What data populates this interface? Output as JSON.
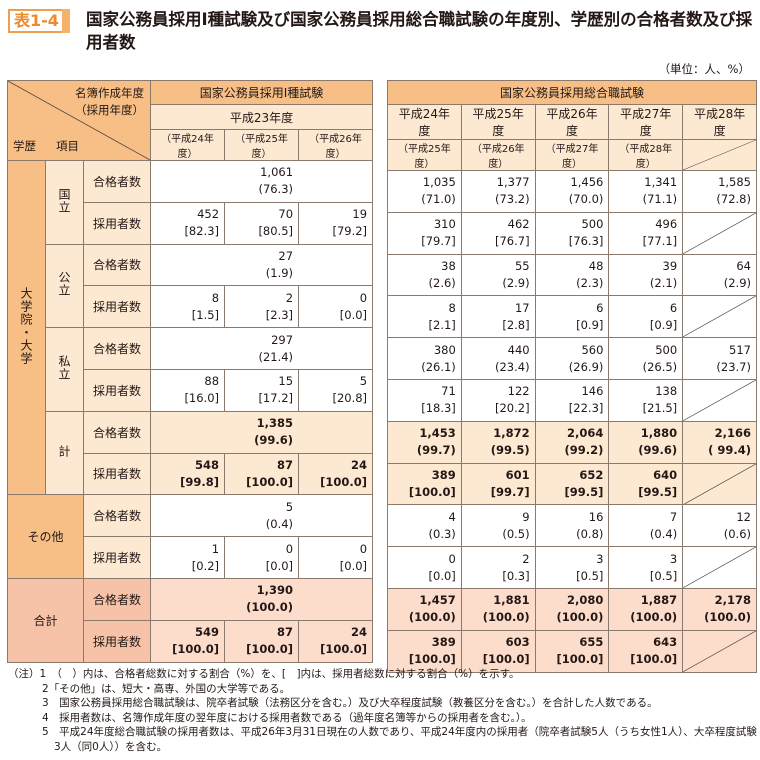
{
  "tag": "表1-4",
  "title": "国家公務員採用Ⅰ種試験及び国家公務員採用総合職試験の年度別、学歴別の合格者数及び採用者数",
  "unit": "（単位：人、%）",
  "corner": {
    "top": "名簿作成年度",
    "top2": "（採用年度）",
    "left1": "学歴",
    "left2": "項目"
  },
  "left_header": {
    "exam": "国家公務員採用Ⅰ種試験",
    "year": "平成23年度",
    "subyears": [
      "（平成24年度）",
      "（平成25年度）",
      "（平成26年度）"
    ]
  },
  "right_header": {
    "exam": "国家公務員採用総合職試験",
    "years": [
      "平成24年度",
      "平成25年度",
      "平成26年度",
      "平成27年度",
      "平成28年度"
    ],
    "subyears": [
      "（平成25年度）",
      "（平成26年度）",
      "（平成27年度）",
      "（平成28年度）"
    ]
  },
  "groups": [
    {
      "label": "大学院・大学",
      "subs": [
        "国立",
        "公立",
        "私立",
        "計"
      ]
    },
    {
      "label": "その他"
    },
    {
      "label": "合計"
    }
  ],
  "items": {
    "pass": "合格者数",
    "hire": "採用者数"
  },
  "rows": [
    {
      "tone": "",
      "left": [
        [
          "1,061",
          "(76.3)"
        ]
      ],
      "right": [
        [
          "1,035",
          "(71.0)"
        ],
        [
          "1,377",
          "(73.2)"
        ],
        [
          "1,456",
          "(70.0)"
        ],
        [
          "1,341",
          "(71.1)"
        ],
        [
          "1,585",
          "(72.8)"
        ]
      ]
    },
    {
      "tone": "",
      "left": [
        [
          "452",
          "[82.3]"
        ],
        [
          "70",
          "[80.5]"
        ],
        [
          "19",
          "[79.2]"
        ]
      ],
      "right": [
        [
          "310",
          "[79.7]"
        ],
        [
          "462",
          "[76.7]"
        ],
        [
          "500",
          "[76.3]"
        ],
        [
          "496",
          "[77.1]"
        ]
      ]
    },
    {
      "tone": "",
      "left": [
        [
          "27",
          "(1.9)"
        ]
      ],
      "right": [
        [
          "38",
          "(2.6)"
        ],
        [
          "55",
          "(2.9)"
        ],
        [
          "48",
          "(2.3)"
        ],
        [
          "39",
          "(2.1)"
        ],
        [
          "64",
          "(2.9)"
        ]
      ]
    },
    {
      "tone": "",
      "left": [
        [
          "8",
          "[1.5]"
        ],
        [
          "2",
          "[2.3]"
        ],
        [
          "0",
          "[0.0]"
        ]
      ],
      "right": [
        [
          "8",
          "[2.1]"
        ],
        [
          "17",
          "[2.8]"
        ],
        [
          "6",
          "[0.9]"
        ],
        [
          "6",
          "[0.9]"
        ]
      ]
    },
    {
      "tone": "",
      "left": [
        [
          "297",
          "(21.4)"
        ]
      ],
      "right": [
        [
          "380",
          "(26.1)"
        ],
        [
          "440",
          "(23.4)"
        ],
        [
          "560",
          "(26.9)"
        ],
        [
          "500",
          "(26.5)"
        ],
        [
          "517",
          "(23.7)"
        ]
      ]
    },
    {
      "tone": "",
      "left": [
        [
          "88",
          "[16.0]"
        ],
        [
          "15",
          "[17.2]"
        ],
        [
          "5",
          "[20.8]"
        ]
      ],
      "right": [
        [
          "71",
          "[18.3]"
        ],
        [
          "122",
          "[20.2]"
        ],
        [
          "146",
          "[22.3]"
        ],
        [
          "138",
          "[21.5]"
        ]
      ]
    },
    {
      "tone": "k",
      "left": [
        [
          "1,385",
          "(99.6)"
        ]
      ],
      "right": [
        [
          "1,453",
          "(99.7)"
        ],
        [
          "1,872",
          "(99.5)"
        ],
        [
          "2,064",
          "(99.2)"
        ],
        [
          "1,880",
          "(99.6)"
        ],
        [
          "2,166",
          "( 99.4)"
        ]
      ]
    },
    {
      "tone": "k",
      "left": [
        [
          "548",
          "[99.8]"
        ],
        [
          "87",
          "[100.0]"
        ],
        [
          "24",
          "[100.0]"
        ]
      ],
      "right": [
        [
          "389",
          "[100.0]"
        ],
        [
          "601",
          "[99.7]"
        ],
        [
          "652",
          "[99.5]"
        ],
        [
          "640",
          "[99.5]"
        ]
      ]
    },
    {
      "tone": "",
      "left": [
        [
          "5",
          "(0.4)"
        ]
      ],
      "right": [
        [
          "4",
          "(0.3)"
        ],
        [
          "9",
          "(0.5)"
        ],
        [
          "16",
          "(0.8)"
        ],
        [
          "7",
          "(0.4)"
        ],
        [
          "12",
          "(0.6)"
        ]
      ]
    },
    {
      "tone": "",
      "left": [
        [
          "1",
          "[0.2]"
        ],
        [
          "0",
          "[0.0]"
        ],
        [
          "0",
          "[0.0]"
        ]
      ],
      "right": [
        [
          "0",
          "[0.0]"
        ],
        [
          "2",
          "[0.3]"
        ],
        [
          "3",
          "[0.5]"
        ],
        [
          "3",
          "[0.5]"
        ]
      ]
    },
    {
      "tone": "t",
      "left": [
        [
          "1,390",
          "(100.0)"
        ]
      ],
      "right": [
        [
          "1,457",
          "(100.0)"
        ],
        [
          "1,881",
          "(100.0)"
        ],
        [
          "2,080",
          "(100.0)"
        ],
        [
          "1,887",
          "(100.0)"
        ],
        [
          "2,178",
          "(100.0)"
        ]
      ]
    },
    {
      "tone": "t",
      "left": [
        [
          "549",
          "[100.0]"
        ],
        [
          "87",
          "[100.0]"
        ],
        [
          "24",
          "[100.0]"
        ]
      ],
      "right": [
        [
          "389",
          "[100.0]"
        ],
        [
          "603",
          "[100.0]"
        ],
        [
          "655",
          "[100.0]"
        ],
        [
          "643",
          "[100.0]"
        ]
      ]
    }
  ],
  "notes": [
    "（注）1　（　）内は、合格者総数に対する割合（%）を、[　]内は、採用者総数に対する割合（%）を示す。",
    "2「その他」は、短大・高専、外国の大学等である。",
    "3　国家公務員採用総合職試験は、院卒者試験（法務区分を含む。）及び大卒程度試験（教養区分を含む。）を合計した人数である。",
    "4　採用者数は、名簿作成年度の翌年度における採用者数である（過年度名簿等からの採用者を含む。）。",
    "5　平成24年度総合職試験の採用者数は、平成26年3月31日現在の人数であり、平成24年度内の採用者（院卒者試験5人（うち女性1人）、大卒程度試験3人（同0人））を含む。"
  ]
}
